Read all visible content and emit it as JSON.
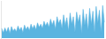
{
  "chart_data": {
    "type": "area",
    "values": [
      33.2,
      30.8,
      33.5,
      31.2,
      33.8,
      30.5,
      34.2,
      31.8,
      33.0,
      31.5,
      34.5,
      32.2,
      33.8,
      31.0,
      35.0,
      32.5,
      34.2,
      32.0,
      35.5,
      33.0,
      35.0,
      32.5,
      36.2,
      33.8,
      35.5,
      33.2,
      37.0,
      34.5,
      36.5,
      33.8,
      38.2,
      35.0,
      37.5,
      32.8,
      39.5,
      35.8,
      38.0,
      33.2,
      40.5,
      34.8,
      39.0,
      31.8,
      41.5,
      35.5,
      39.5,
      31.2,
      42.0,
      36.5,
      40.5,
      30.5,
      43.5,
      35.0,
      41.0,
      32.0,
      44.0,
      35.5,
      42.5,
      31.0,
      45.0,
      36.0,
      43.0,
      30.8,
      45.5,
      36.5
    ],
    "color": "#5ab4e0",
    "ylim": [
      28.0,
      48.0
    ],
    "grid": false,
    "tick_labels": false
  }
}
